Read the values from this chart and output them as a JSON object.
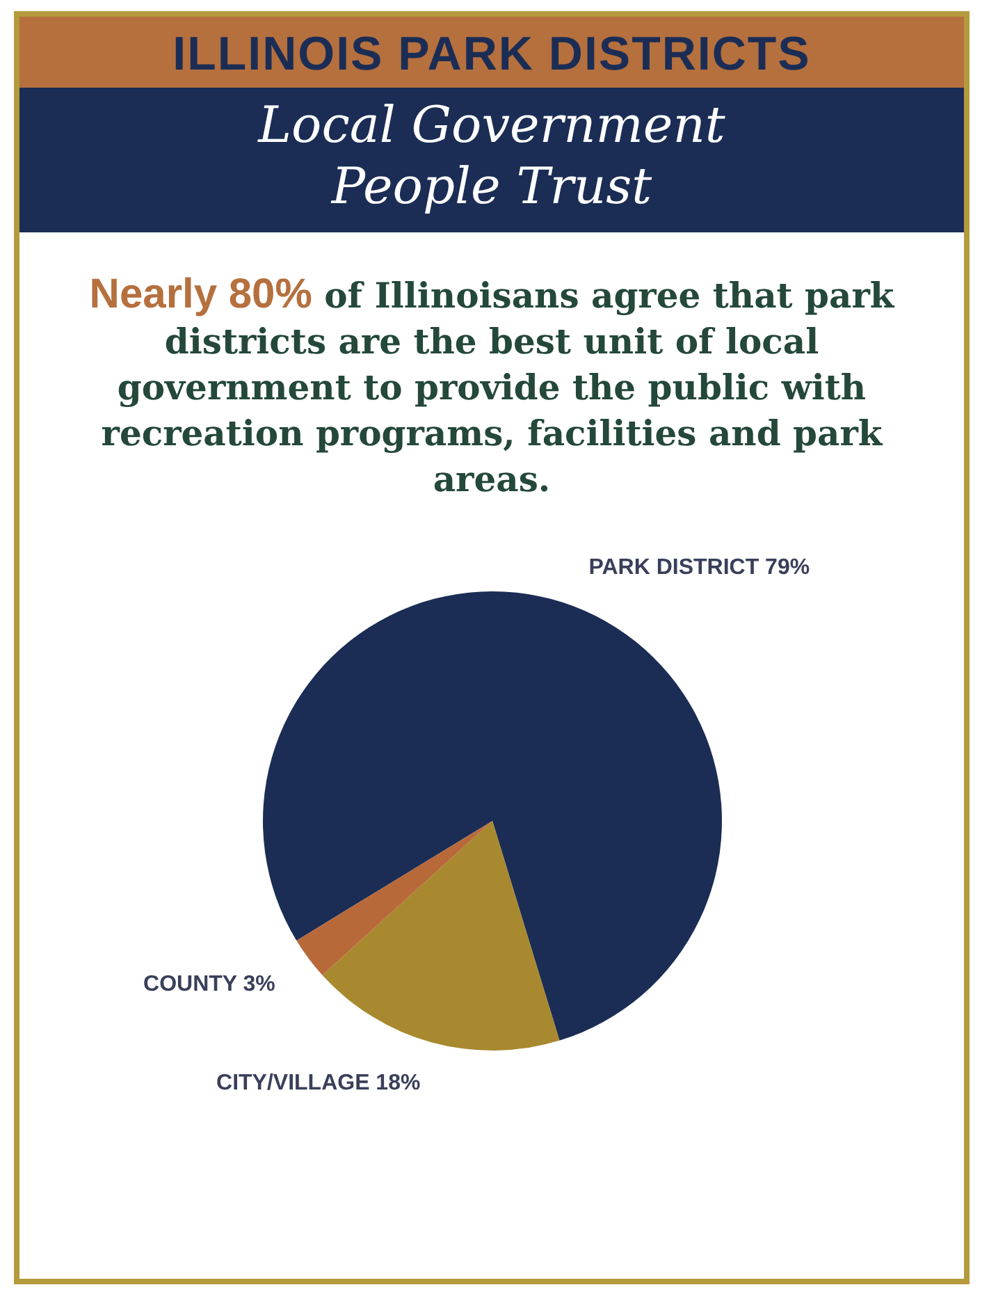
{
  "chart_data": {
    "type": "pie",
    "title": "ILLINOIS PARK DISTRICTS",
    "subtitle": "Local Government People Trust",
    "annotations": [
      "Nearly 80% of Illinoisans agree that park districts are the best unit of local government to provide the public with recreation programs, facilities and park areas."
    ],
    "categories": [
      "PARK DISTRICT",
      "CITY/VILLAGE",
      "COUNTY"
    ],
    "values": [
      79,
      18,
      3
    ],
    "value_labels": [
      "79%",
      "18%",
      "3%"
    ],
    "colors": [
      "#1b2d55",
      "#a8892f",
      "#b8693a"
    ]
  }
}
